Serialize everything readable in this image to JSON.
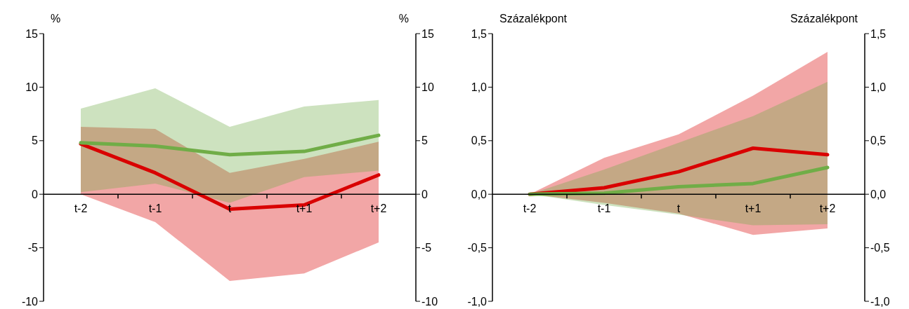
{
  "chart_data": [
    {
      "type": "line",
      "categories": [
        "t-2",
        "t-1",
        "t",
        "t+1",
        "t+2"
      ],
      "ylabel": "%",
      "y2label": "%",
      "ylim": [
        -10,
        15
      ],
      "yticks": [
        -10,
        -5,
        0,
        5,
        10,
        15
      ],
      "y2lim": [
        -10,
        15
      ],
      "y2ticks": [
        -10,
        -5,
        0,
        5,
        10,
        15
      ],
      "series": [
        {
          "color": "#d90000",
          "values": [
            4.7,
            2.0,
            -1.4,
            -1.0,
            1.8
          ],
          "lower": [
            0,
            -2.6,
            -8.1,
            -7.4,
            -4.5
          ],
          "upper": [
            6.3,
            6.1,
            2.0,
            3.3,
            4.9
          ]
        },
        {
          "color": "#70ad47",
          "values": [
            4.8,
            4.5,
            3.7,
            4.0,
            5.5
          ],
          "lower": [
            0.2,
            1.0,
            -0.8,
            1.6,
            2.2
          ],
          "upper": [
            8.0,
            9.9,
            6.3,
            8.2,
            8.8
          ]
        }
      ]
    },
    {
      "type": "line",
      "categories": [
        "t-2",
        "t-1",
        "t",
        "t+1",
        "t+2"
      ],
      "ylabel": "Százalékpont",
      "y2label": "Százalékpont",
      "ylim": [
        -1,
        1.5
      ],
      "yticks": [
        {
          "value": -1,
          "label": "-1,0"
        },
        {
          "value": -0.5,
          "label": "-0,5"
        },
        {
          "value": 0,
          "label": "0,0"
        },
        {
          "value": 0.5,
          "label": "0,5"
        },
        {
          "value": 1,
          "label": "1,0"
        },
        {
          "value": 1.5,
          "label": "1,5"
        }
      ],
      "y2lim": [
        -1,
        1.5
      ],
      "y2ticks": [
        {
          "value": -1,
          "label": "-1,0"
        },
        {
          "value": -0.5,
          "label": "-0,5"
        },
        {
          "value": 0,
          "label": "0,0"
        },
        {
          "value": 0.5,
          "label": "0,5"
        },
        {
          "value": 1,
          "label": "1,0"
        },
        {
          "value": 1.5,
          "label": "1,5"
        }
      ],
      "series": [
        {
          "color": "#d90000",
          "values": [
            0,
            0.06,
            0.21,
            0.43,
            0.37
          ],
          "lower": [
            0,
            -0.08,
            -0.18,
            -0.38,
            -0.32
          ],
          "upper": [
            0,
            0.34,
            0.56,
            0.92,
            1.33
          ]
        },
        {
          "color": "#70ad47",
          "values": [
            0,
            0.01,
            0.07,
            0.1,
            0.25
          ],
          "lower": [
            0,
            -0.1,
            -0.19,
            -0.29,
            -0.28
          ],
          "upper": [
            0,
            0.23,
            0.48,
            0.73,
            1.05
          ]
        }
      ]
    }
  ]
}
